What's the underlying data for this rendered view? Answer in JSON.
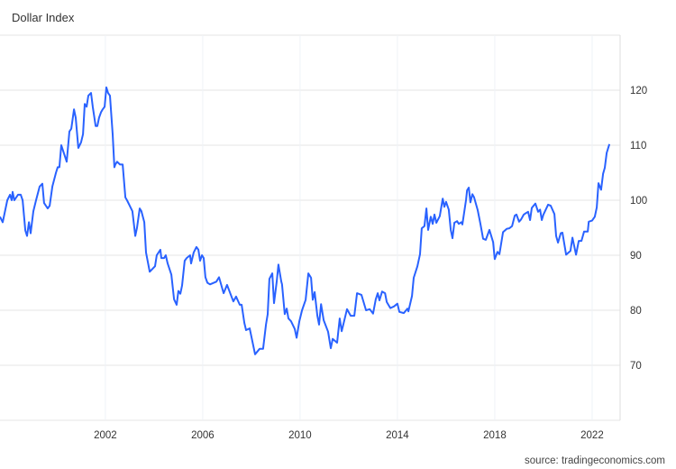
{
  "chart_data": {
    "type": "line",
    "title": "Dollar Index",
    "source": "source: tradingeconomics.com",
    "xlabel": "",
    "ylabel": "",
    "xlim": [
      1997.67,
      2023.15
    ],
    "ylim": [
      60,
      130
    ],
    "xticks": [
      2002,
      2006,
      2010,
      2014,
      2018,
      2022
    ],
    "yticks": [
      70,
      80,
      90,
      100,
      110,
      120
    ],
    "y_axis_side": "right",
    "grid": true,
    "line_color": "#2962ff",
    "grid_color": "#e6e6e6",
    "series": [
      {
        "points": [
          [
            1997.67,
            97
          ],
          [
            1997.78,
            96
          ],
          [
            1997.97,
            100
          ],
          [
            1998.08,
            101
          ],
          [
            1998.15,
            100
          ],
          [
            1998.19,
            101.5
          ],
          [
            1998.26,
            100
          ],
          [
            1998.41,
            101
          ],
          [
            1998.52,
            101
          ],
          [
            1998.6,
            100
          ],
          [
            1998.71,
            94.5
          ],
          [
            1998.78,
            93.5
          ],
          [
            1998.86,
            96
          ],
          [
            1998.93,
            94
          ],
          [
            1999.04,
            98
          ],
          [
            1999.15,
            100
          ],
          [
            1999.3,
            102.5
          ],
          [
            1999.41,
            103
          ],
          [
            1999.48,
            99.5
          ],
          [
            1999.63,
            98.5
          ],
          [
            1999.71,
            99
          ],
          [
            1999.82,
            102.5
          ],
          [
            1999.97,
            105
          ],
          [
            2000.04,
            106
          ],
          [
            2000.11,
            106
          ],
          [
            2000.19,
            110
          ],
          [
            2000.3,
            108.5
          ],
          [
            2000.41,
            107
          ],
          [
            2000.52,
            112.5
          ],
          [
            2000.6,
            113
          ],
          [
            2000.71,
            116.5
          ],
          [
            2000.78,
            115
          ],
          [
            2000.89,
            109.5
          ],
          [
            2001.0,
            110.5
          ],
          [
            2001.08,
            112
          ],
          [
            2001.15,
            117.5
          ],
          [
            2001.23,
            117
          ],
          [
            2001.3,
            119
          ],
          [
            2001.41,
            119.5
          ],
          [
            2001.48,
            117
          ],
          [
            2001.6,
            113.5
          ],
          [
            2001.67,
            113.5
          ],
          [
            2001.74,
            115
          ],
          [
            2001.82,
            116
          ],
          [
            2001.89,
            116.5
          ],
          [
            2001.97,
            117
          ],
          [
            2002.04,
            120.5
          ],
          [
            2002.11,
            119.5
          ],
          [
            2002.19,
            119
          ],
          [
            2002.3,
            112
          ],
          [
            2002.37,
            106
          ],
          [
            2002.41,
            106.5
          ],
          [
            2002.48,
            107
          ],
          [
            2002.6,
            106.5
          ],
          [
            2002.71,
            106.5
          ],
          [
            2002.82,
            100.5
          ],
          [
            2002.89,
            100
          ],
          [
            2003.0,
            99
          ],
          [
            2003.11,
            98
          ],
          [
            2003.23,
            93.5
          ],
          [
            2003.3,
            95
          ],
          [
            2003.41,
            98.5
          ],
          [
            2003.48,
            98
          ],
          [
            2003.6,
            96
          ],
          [
            2003.67,
            90.5
          ],
          [
            2003.82,
            87
          ],
          [
            2003.93,
            87.5
          ],
          [
            2004.04,
            88
          ],
          [
            2004.11,
            90
          ],
          [
            2004.26,
            91
          ],
          [
            2004.3,
            89.5
          ],
          [
            2004.41,
            89.5
          ],
          [
            2004.48,
            90
          ],
          [
            2004.56,
            88.5
          ],
          [
            2004.71,
            86.5
          ],
          [
            2004.82,
            82
          ],
          [
            2004.93,
            81
          ],
          [
            2005.0,
            83.5
          ],
          [
            2005.08,
            83
          ],
          [
            2005.15,
            84.5
          ],
          [
            2005.26,
            89
          ],
          [
            2005.34,
            89.5
          ],
          [
            2005.48,
            90
          ],
          [
            2005.52,
            88.5
          ],
          [
            2005.63,
            90.5
          ],
          [
            2005.74,
            91.5
          ],
          [
            2005.82,
            91
          ],
          [
            2005.89,
            89
          ],
          [
            2005.97,
            90
          ],
          [
            2006.04,
            89.5
          ],
          [
            2006.11,
            86
          ],
          [
            2006.19,
            85
          ],
          [
            2006.3,
            84.7
          ],
          [
            2006.56,
            85.2
          ],
          [
            2006.67,
            86
          ],
          [
            2006.86,
            83.1
          ],
          [
            2007.0,
            84.6
          ],
          [
            2007.26,
            81.6
          ],
          [
            2007.37,
            82.5
          ],
          [
            2007.52,
            81
          ],
          [
            2007.6,
            81
          ],
          [
            2007.71,
            77.7
          ],
          [
            2007.78,
            76.4
          ],
          [
            2007.93,
            76.7
          ],
          [
            2008.15,
            72
          ],
          [
            2008.34,
            73
          ],
          [
            2008.48,
            73
          ],
          [
            2008.6,
            77.4
          ],
          [
            2008.67,
            79.3
          ],
          [
            2008.74,
            85.7
          ],
          [
            2008.86,
            86.7
          ],
          [
            2008.93,
            81.3
          ],
          [
            2009.04,
            85.2
          ],
          [
            2009.11,
            88.3
          ],
          [
            2009.23,
            85.2
          ],
          [
            2009.26,
            84.7
          ],
          [
            2009.37,
            79.3
          ],
          [
            2009.45,
            80.3
          ],
          [
            2009.52,
            78.5
          ],
          [
            2009.63,
            78
          ],
          [
            2009.78,
            76.6
          ],
          [
            2009.86,
            75
          ],
          [
            2009.97,
            78
          ],
          [
            2010.08,
            80
          ],
          [
            2010.23,
            81.9
          ],
          [
            2010.34,
            86.7
          ],
          [
            2010.45,
            85.9
          ],
          [
            2010.52,
            81.9
          ],
          [
            2010.6,
            83.3
          ],
          [
            2010.71,
            79
          ],
          [
            2010.78,
            77.4
          ],
          [
            2010.86,
            81.1
          ],
          [
            2010.97,
            78.2
          ],
          [
            2011.15,
            76.1
          ],
          [
            2011.26,
            73.1
          ],
          [
            2011.34,
            74.8
          ],
          [
            2011.52,
            74.1
          ],
          [
            2011.63,
            78.5
          ],
          [
            2011.71,
            76.2
          ],
          [
            2011.93,
            80.2
          ],
          [
            2012.08,
            79
          ],
          [
            2012.23,
            79
          ],
          [
            2012.34,
            83.1
          ],
          [
            2012.52,
            82.8
          ],
          [
            2012.71,
            80
          ],
          [
            2012.86,
            80.2
          ],
          [
            2013.0,
            79.4
          ],
          [
            2013.11,
            82
          ],
          [
            2013.19,
            83.1
          ],
          [
            2013.26,
            81.8
          ],
          [
            2013.37,
            83.4
          ],
          [
            2013.49,
            83.1
          ],
          [
            2013.56,
            81.5
          ],
          [
            2013.71,
            80.4
          ],
          [
            2013.86,
            80.7
          ],
          [
            2014.0,
            81.2
          ],
          [
            2014.08,
            79.7
          ],
          [
            2014.26,
            79.5
          ],
          [
            2014.41,
            80.3
          ],
          [
            2014.45,
            79.8
          ],
          [
            2014.6,
            82.6
          ],
          [
            2014.67,
            85.9
          ],
          [
            2014.82,
            88
          ],
          [
            2014.93,
            90.2
          ],
          [
            2015.0,
            94.9
          ],
          [
            2015.11,
            95.3
          ],
          [
            2015.19,
            98.5
          ],
          [
            2015.26,
            94.6
          ],
          [
            2015.37,
            97
          ],
          [
            2015.45,
            95.7
          ],
          [
            2015.52,
            97.4
          ],
          [
            2015.6,
            95.9
          ],
          [
            2015.74,
            97.1
          ],
          [
            2015.86,
            100.3
          ],
          [
            2015.93,
            98.8
          ],
          [
            2016.0,
            99.7
          ],
          [
            2016.11,
            98.3
          ],
          [
            2016.19,
            94.6
          ],
          [
            2016.26,
            93.1
          ],
          [
            2016.34,
            95.9
          ],
          [
            2016.45,
            96.2
          ],
          [
            2016.52,
            95.7
          ],
          [
            2016.63,
            96
          ],
          [
            2016.67,
            95.6
          ],
          [
            2016.82,
            100.1
          ],
          [
            2016.86,
            101.8
          ],
          [
            2016.93,
            102.3
          ],
          [
            2017.0,
            99.6
          ],
          [
            2017.08,
            101.1
          ],
          [
            2017.15,
            100.5
          ],
          [
            2017.3,
            98.2
          ],
          [
            2017.41,
            95.7
          ],
          [
            2017.52,
            93
          ],
          [
            2017.63,
            92.8
          ],
          [
            2017.78,
            94.6
          ],
          [
            2017.93,
            92.4
          ],
          [
            2018.0,
            89.3
          ],
          [
            2018.11,
            90.6
          ],
          [
            2018.19,
            90.2
          ],
          [
            2018.34,
            94.2
          ],
          [
            2018.49,
            94.8
          ],
          [
            2018.6,
            94.9
          ],
          [
            2018.71,
            95.3
          ],
          [
            2018.82,
            97.2
          ],
          [
            2018.89,
            97.4
          ],
          [
            2019.0,
            96.1
          ],
          [
            2019.08,
            96.5
          ],
          [
            2019.19,
            97.4
          ],
          [
            2019.26,
            97.6
          ],
          [
            2019.37,
            97.9
          ],
          [
            2019.45,
            96.4
          ],
          [
            2019.52,
            98.6
          ],
          [
            2019.67,
            99.4
          ],
          [
            2019.78,
            97.9
          ],
          [
            2019.86,
            98.3
          ],
          [
            2019.93,
            96.4
          ],
          [
            2020.0,
            97.4
          ],
          [
            2020.19,
            99.2
          ],
          [
            2020.3,
            99
          ],
          [
            2020.45,
            97.5
          ],
          [
            2020.52,
            93.5
          ],
          [
            2020.6,
            92.3
          ],
          [
            2020.71,
            94
          ],
          [
            2020.78,
            94.1
          ],
          [
            2020.93,
            90.1
          ],
          [
            2021.11,
            90.8
          ],
          [
            2021.19,
            93.2
          ],
          [
            2021.34,
            90.1
          ],
          [
            2021.45,
            92.6
          ],
          [
            2021.56,
            92.6
          ],
          [
            2021.67,
            94.3
          ],
          [
            2021.82,
            94.3
          ],
          [
            2021.86,
            96.1
          ],
          [
            2022.0,
            96.3
          ],
          [
            2022.11,
            97
          ],
          [
            2022.19,
            98.7
          ],
          [
            2022.26,
            103.1
          ],
          [
            2022.37,
            101.9
          ],
          [
            2022.45,
            104.8
          ],
          [
            2022.52,
            105.9
          ],
          [
            2022.6,
            108.6
          ],
          [
            2022.71,
            110.2
          ]
        ]
      }
    ]
  }
}
